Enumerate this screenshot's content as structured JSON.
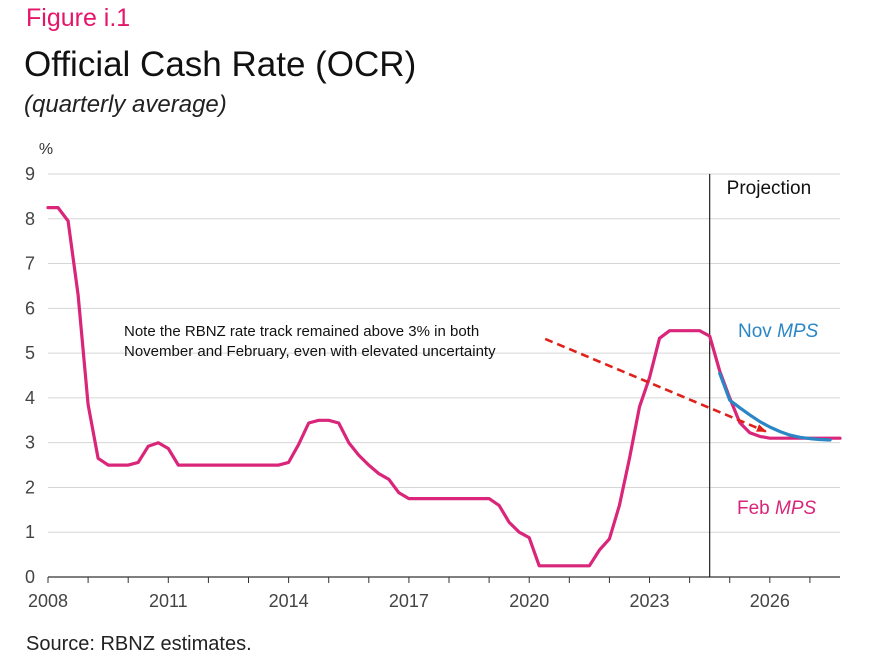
{
  "figure_label": "Figure i.1",
  "title": "Official Cash Rate (OCR)",
  "subtitle": "(quarterly average)",
  "source": "Source: RBNZ estimates.",
  "colors": {
    "accent": "#e5156a",
    "feb": "#d9257a",
    "nov": "#2b86c5",
    "arrow": "#e0201a",
    "grid": "#d6d6d6"
  },
  "chart_data": {
    "type": "line",
    "ylabel": "%",
    "ylim": [
      0,
      9
    ],
    "yticks": [
      "0",
      "1",
      "2",
      "3",
      "4",
      "5",
      "6",
      "7",
      "8",
      "9"
    ],
    "xlim": [
      2008,
      2027.75
    ],
    "xticks": [
      {
        "x": 2008,
        "label": "2008"
      },
      {
        "x": 2011,
        "label": "2011"
      },
      {
        "x": 2014,
        "label": "2014"
      },
      {
        "x": 2017,
        "label": "2017"
      },
      {
        "x": 2020,
        "label": "2020"
      },
      {
        "x": 2023,
        "label": "2023"
      },
      {
        "x": 2026,
        "label": "2026"
      }
    ],
    "grid": true,
    "projection_start": 2024.5,
    "projection_label": "Projection",
    "annotation": "Note the RBNZ rate track remained above 3% in both November and February, even with elevated uncertainty",
    "annotation_lines": [
      "Note the RBNZ rate track remained above 3% in both",
      "November and February, even with elevated uncertainty"
    ],
    "arrow_from": [
      2020.0,
      5.25
    ],
    "arrow_to": [
      2026.0,
      3.25
    ],
    "series": [
      {
        "name": "Feb MPS",
        "label_plain": "Feb ",
        "label_italic": "MPS",
        "color": "#d9257a",
        "points": [
          [
            2008.0,
            8.25
          ],
          [
            2008.25,
            8.25
          ],
          [
            2008.5,
            7.95
          ],
          [
            2008.75,
            6.3
          ],
          [
            2009.0,
            3.85
          ],
          [
            2009.25,
            2.65
          ],
          [
            2009.5,
            2.5
          ],
          [
            2009.75,
            2.5
          ],
          [
            2010.0,
            2.5
          ],
          [
            2010.25,
            2.56
          ],
          [
            2010.5,
            2.92
          ],
          [
            2010.75,
            3.0
          ],
          [
            2011.0,
            2.87
          ],
          [
            2011.25,
            2.5
          ],
          [
            2011.5,
            2.5
          ],
          [
            2011.75,
            2.5
          ],
          [
            2012.0,
            2.5
          ],
          [
            2012.25,
            2.5
          ],
          [
            2012.5,
            2.5
          ],
          [
            2012.75,
            2.5
          ],
          [
            2013.0,
            2.5
          ],
          [
            2013.25,
            2.5
          ],
          [
            2013.5,
            2.5
          ],
          [
            2013.75,
            2.5
          ],
          [
            2014.0,
            2.56
          ],
          [
            2014.25,
            2.96
          ],
          [
            2014.5,
            3.44
          ],
          [
            2014.75,
            3.5
          ],
          [
            2015.0,
            3.5
          ],
          [
            2015.25,
            3.44
          ],
          [
            2015.5,
            3.0
          ],
          [
            2015.75,
            2.72
          ],
          [
            2016.0,
            2.5
          ],
          [
            2016.25,
            2.31
          ],
          [
            2016.5,
            2.18
          ],
          [
            2016.75,
            1.88
          ],
          [
            2017.0,
            1.75
          ],
          [
            2017.25,
            1.75
          ],
          [
            2017.5,
            1.75
          ],
          [
            2017.75,
            1.75
          ],
          [
            2018.0,
            1.75
          ],
          [
            2018.25,
            1.75
          ],
          [
            2018.5,
            1.75
          ],
          [
            2018.75,
            1.75
          ],
          [
            2019.0,
            1.75
          ],
          [
            2019.25,
            1.6
          ],
          [
            2019.5,
            1.22
          ],
          [
            2019.75,
            1.0
          ],
          [
            2020.0,
            0.88
          ],
          [
            2020.25,
            0.25
          ],
          [
            2020.5,
            0.25
          ],
          [
            2020.75,
            0.25
          ],
          [
            2021.0,
            0.25
          ],
          [
            2021.25,
            0.25
          ],
          [
            2021.5,
            0.25
          ],
          [
            2021.75,
            0.6
          ],
          [
            2022.0,
            0.85
          ],
          [
            2022.25,
            1.6
          ],
          [
            2022.5,
            2.65
          ],
          [
            2022.75,
            3.8
          ],
          [
            2023.0,
            4.45
          ],
          [
            2023.25,
            5.33
          ],
          [
            2023.5,
            5.5
          ],
          [
            2023.75,
            5.5
          ],
          [
            2024.0,
            5.5
          ],
          [
            2024.25,
            5.5
          ],
          [
            2024.5,
            5.38
          ],
          [
            2024.75,
            4.6
          ],
          [
            2025.0,
            4.0
          ],
          [
            2025.25,
            3.45
          ],
          [
            2025.5,
            3.22
          ],
          [
            2025.75,
            3.14
          ],
          [
            2026.0,
            3.1
          ],
          [
            2026.25,
            3.1
          ],
          [
            2026.5,
            3.1
          ],
          [
            2026.75,
            3.1
          ],
          [
            2027.0,
            3.1
          ],
          [
            2027.25,
            3.1
          ],
          [
            2027.5,
            3.1
          ],
          [
            2027.75,
            3.1
          ]
        ]
      },
      {
        "name": "Nov MPS",
        "label_plain": "Nov ",
        "label_italic": "MPS",
        "color": "#2b86c5",
        "points": [
          [
            2024.75,
            4.55
          ],
          [
            2025.0,
            3.95
          ],
          [
            2025.25,
            3.78
          ],
          [
            2025.5,
            3.62
          ],
          [
            2025.75,
            3.47
          ],
          [
            2026.0,
            3.35
          ],
          [
            2026.25,
            3.25
          ],
          [
            2026.5,
            3.17
          ],
          [
            2026.75,
            3.12
          ],
          [
            2027.0,
            3.09
          ],
          [
            2027.25,
            3.07
          ],
          [
            2027.5,
            3.06
          ]
        ]
      }
    ]
  }
}
